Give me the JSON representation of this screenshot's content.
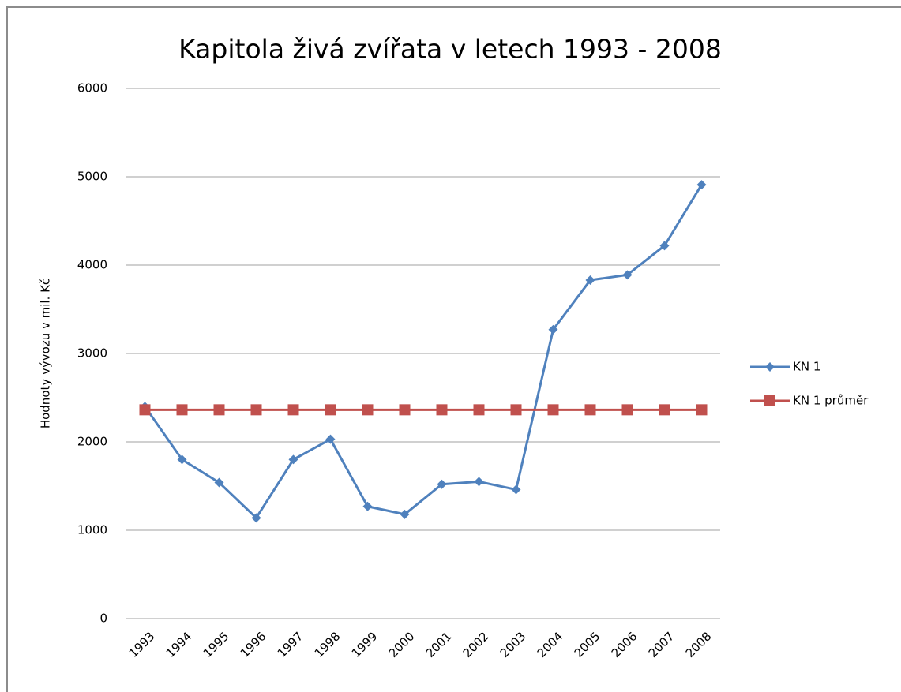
{
  "chart_data": {
    "type": "line",
    "title": "Kapitola živá zvířata v letech 1993 - 2008",
    "y_label": "Hodnoty vývozu v mil. Kč",
    "categories": [
      "1993",
      "1994",
      "1995",
      "1996",
      "1997",
      "1998",
      "1999",
      "2000",
      "2001",
      "2002",
      "2003",
      "2004",
      "2005",
      "2006",
      "2007",
      "2008"
    ],
    "series": [
      {
        "name": "KN 1",
        "color": "#4f81bd",
        "marker": "diamond",
        "values": [
          2400,
          1800,
          1540,
          1140,
          1800,
          2030,
          1270,
          1180,
          1520,
          1550,
          1460,
          3270,
          3830,
          3890,
          4220,
          4910
        ]
      },
      {
        "name": "KN 1 průměr",
        "color": "#c0504d",
        "marker": "square",
        "values": [
          2363,
          2363,
          2363,
          2363,
          2363,
          2363,
          2363,
          2363,
          2363,
          2363,
          2363,
          2363,
          2363,
          2363,
          2363,
          2363
        ]
      }
    ],
    "ylim": [
      0,
      6000
    ],
    "yticks": [
      0,
      1000,
      2000,
      3000,
      4000,
      5000,
      6000
    ],
    "grid": true,
    "legend": "right"
  }
}
